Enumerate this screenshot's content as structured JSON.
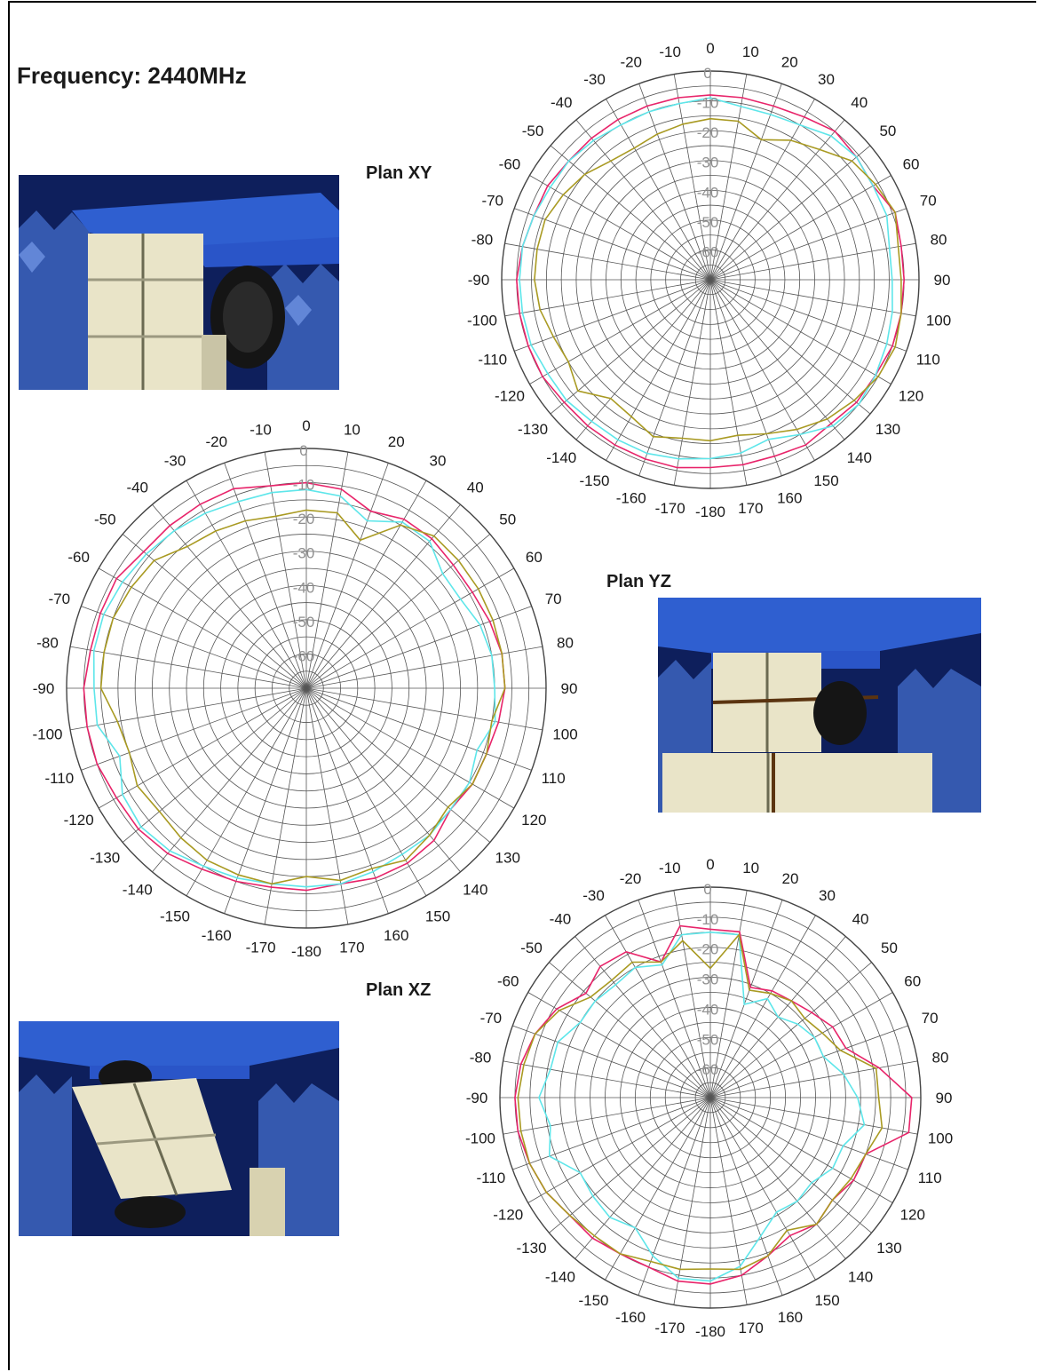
{
  "page": {
    "title": "Frequency: 2440MHz",
    "colors": {
      "red": "#e8246a",
      "cyan": "#5ee6ea",
      "olive": "#a99a22",
      "grid": "#555555",
      "ring_label": "#909090"
    }
  },
  "chart_data": [
    {
      "type": "polar",
      "name": "Plan XY",
      "angle_ticks": [
        0,
        10,
        20,
        30,
        40,
        50,
        60,
        70,
        80,
        90,
        100,
        110,
        120,
        130,
        140,
        150,
        160,
        170,
        -180,
        -170,
        -160,
        -150,
        -140,
        -130,
        -120,
        -110,
        -100,
        -90,
        -80,
        -70,
        -60,
        -50,
        -40,
        -30,
        -20,
        -10
      ],
      "radial_ticks": [
        0,
        -10,
        -20,
        -30,
        -40,
        -50,
        -60
      ],
      "rlim": [
        -70,
        0
      ],
      "angles": [
        0,
        10,
        20,
        30,
        40,
        50,
        60,
        70,
        80,
        90,
        100,
        110,
        120,
        130,
        140,
        150,
        160,
        170,
        180,
        -170,
        -160,
        -150,
        -140,
        -130,
        -120,
        -110,
        -100,
        -90,
        -80,
        -70,
        -60,
        -50,
        -40,
        -30,
        -20,
        -10
      ],
      "series": [
        {
          "color": "red",
          "values": [
            -8,
            -8,
            -8,
            -7,
            -5,
            -6,
            -7,
            -4,
            -5,
            -5,
            -5,
            -5,
            -6,
            -6,
            -7,
            -6,
            -7,
            -7,
            -7,
            -6,
            -6,
            -6,
            -6,
            -6,
            -5,
            -5,
            -5,
            -5,
            -6,
            -7,
            -7,
            -8,
            -8,
            -8,
            -8,
            -8
          ]
        },
        {
          "color": "cyan",
          "values": [
            -9,
            -11,
            -11,
            -10,
            -7,
            -6,
            -7,
            -7,
            -9,
            -9,
            -8,
            -7,
            -6,
            -5,
            -6,
            -10,
            -13,
            -11,
            -10,
            -9,
            -8,
            -8,
            -8,
            -7,
            -7,
            -6,
            -6,
            -6,
            -6,
            -7,
            -8,
            -8,
            -9,
            -10,
            -10,
            -10
          ]
        },
        {
          "color": "olive",
          "values": [
            -16,
            -16,
            -20,
            -16,
            -13,
            -8,
            -6,
            -4,
            -6,
            -6,
            -5,
            -4,
            -5,
            -7,
            -9,
            -12,
            -15,
            -17,
            -16,
            -16,
            -14,
            -17,
            -18,
            -12,
            -15,
            -14,
            -12,
            -11,
            -11,
            -11,
            -13,
            -15,
            -18,
            -19,
            -18,
            -17
          ]
        }
      ]
    },
    {
      "type": "polar",
      "name": "Plan YZ",
      "angle_ticks": [
        0,
        10,
        20,
        30,
        40,
        50,
        60,
        70,
        80,
        90,
        100,
        110,
        120,
        130,
        140,
        150,
        160,
        170,
        -180,
        -170,
        -160,
        -150,
        -140,
        -130,
        -120,
        -110,
        -100,
        -90,
        -80,
        -70,
        -60,
        -50,
        -40,
        -30,
        -20,
        -10
      ],
      "radial_ticks": [
        0,
        -10,
        -20,
        -30,
        -40,
        -50,
        -60
      ],
      "rlim": [
        -70,
        0
      ],
      "angles": [
        0,
        10,
        20,
        30,
        40,
        50,
        60,
        70,
        80,
        90,
        100,
        110,
        120,
        130,
        140,
        150,
        160,
        170,
        180,
        -170,
        -160,
        -150,
        -140,
        -130,
        -120,
        -110,
        -100,
        -90,
        -80,
        -70,
        -60,
        -50,
        -40,
        -30,
        -20,
        -10
      ],
      "series": [
        {
          "color": "red",
          "values": [
            -10,
            -11,
            -15,
            -13,
            -13,
            -14,
            -14,
            -13,
            -12,
            -12,
            -13,
            -14,
            -14,
            -15,
            -12,
            -11,
            -11,
            -12,
            -11,
            -11,
            -10,
            -9,
            -7,
            -6,
            -6,
            -5,
            -5,
            -5,
            -6,
            -6,
            -6,
            -8,
            -8,
            -8,
            -8,
            -10
          ]
        },
        {
          "color": "cyan",
          "values": [
            -12,
            -13,
            -18,
            -14,
            -14,
            -18,
            -18,
            -16,
            -15,
            -15,
            -14,
            -17,
            -15,
            -15,
            -14,
            -14,
            -13,
            -12,
            -12,
            -12,
            -11,
            -10,
            -8,
            -7,
            -8,
            -12,
            -8,
            -8,
            -7,
            -7,
            -8,
            -9,
            -10,
            -11,
            -12,
            -12
          ]
        },
        {
          "color": "olive",
          "values": [
            -18,
            -18,
            -24,
            -15,
            -12,
            -12,
            -12,
            -12,
            -12,
            -12,
            -15,
            -14,
            -14,
            -16,
            -14,
            -12,
            -14,
            -13,
            -15,
            -12,
            -12,
            -12,
            -13,
            -14,
            -13,
            -15,
            -14,
            -10,
            -10,
            -10,
            -11,
            -12,
            -16,
            -17,
            -18,
            -19
          ]
        }
      ]
    },
    {
      "type": "polar",
      "name": "Plan XZ",
      "angle_ticks": [
        0,
        10,
        20,
        30,
        40,
        50,
        60,
        70,
        80,
        90,
        100,
        110,
        120,
        130,
        140,
        150,
        160,
        170,
        -180,
        -170,
        -160,
        -150,
        -140,
        -130,
        -120,
        -110,
        -100,
        -90,
        -80,
        -70,
        -60,
        -50,
        -40,
        -30,
        -20,
        -10
      ],
      "radial_ticks": [
        0,
        -10,
        -20,
        -30,
        -40,
        -50,
        -60
      ],
      "rlim": [
        -70,
        0
      ],
      "angles": [
        0,
        10,
        20,
        30,
        40,
        50,
        60,
        70,
        80,
        90,
        100,
        110,
        120,
        130,
        140,
        150,
        160,
        170,
        180,
        -170,
        -160,
        -150,
        -140,
        -130,
        -120,
        -110,
        -100,
        -90,
        -80,
        -70,
        -60,
        -50,
        -40,
        -30,
        -20,
        -10
      ],
      "series": [
        {
          "color": "red",
          "values": [
            -14,
            -14,
            -31,
            -29,
            -28,
            -26,
            -23,
            -22,
            -13,
            -3,
            -3,
            -15,
            -15,
            -17,
            -15,
            -17,
            -14,
            -10,
            -8,
            -8,
            -10,
            -10,
            -9,
            -9,
            -7,
            -6,
            -5,
            -5,
            -6,
            -8,
            -11,
            -16,
            -13,
            -14,
            -22,
            -12
          ]
        },
        {
          "color": "cyan",
          "values": [
            -15,
            -15,
            -37,
            -32,
            -35,
            -32,
            -30,
            -30,
            -25,
            -21,
            -18,
            -23,
            -23,
            -26,
            -25,
            -26,
            -21,
            -13,
            -9,
            -9,
            -14,
            -20,
            -18,
            -19,
            -20,
            -13,
            -16,
            -13,
            -16,
            -16,
            -20,
            -20,
            -21,
            -20,
            -23,
            -15
          ]
        },
        {
          "color": "olive",
          "values": [
            -27,
            -15,
            -32,
            -30,
            -28,
            -29,
            -27,
            -24,
            -14,
            -14,
            -12,
            -15,
            -16,
            -17,
            -15,
            -19,
            -14,
            -12,
            -13,
            -12,
            -12,
            -10,
            -10,
            -9,
            -7,
            -6,
            -6,
            -6,
            -7,
            -8,
            -12,
            -18,
            -19,
            -18,
            -22,
            -17
          ]
        }
      ]
    }
  ]
}
